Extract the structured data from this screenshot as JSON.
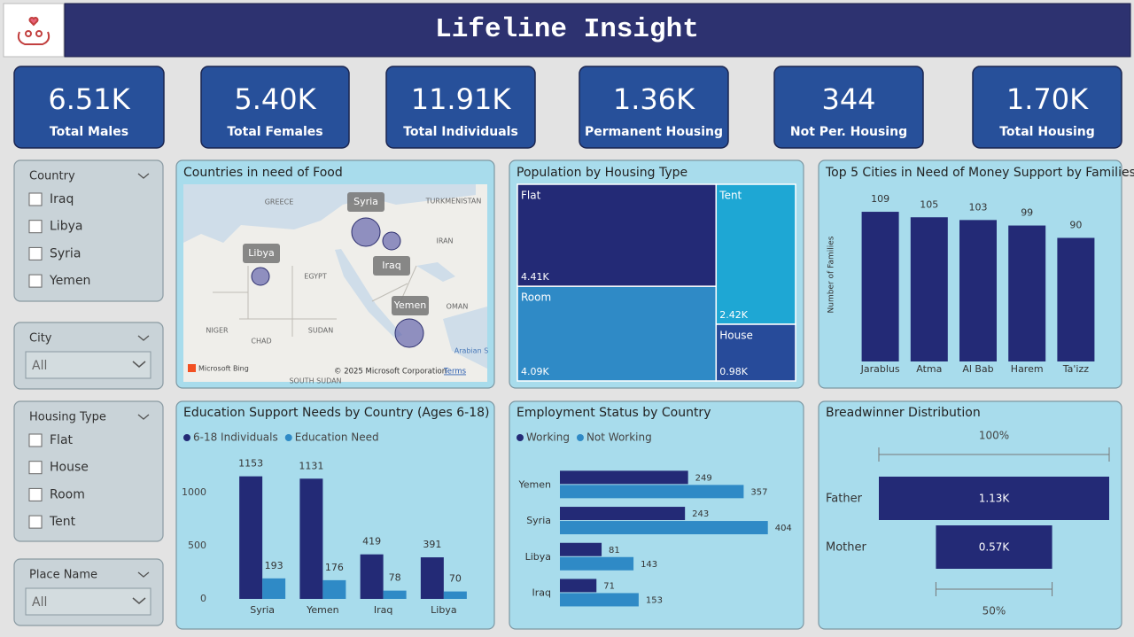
{
  "header": {
    "title": "Lifeline Insight"
  },
  "kpis": [
    {
      "value": "6.51K",
      "label": "Total Males"
    },
    {
      "value": "5.40K",
      "label": "Total Females"
    },
    {
      "value": "11.91K",
      "label": "Total Individuals"
    },
    {
      "value": "1.36K",
      "label": "Permanent Housing"
    },
    {
      "value": "344",
      "label": "Not Per. Housing"
    },
    {
      "value": "1.70K",
      "label": "Total Housing"
    }
  ],
  "slicers": [
    {
      "title": "Country",
      "options": [
        "Iraq",
        "Libya",
        "Syria",
        "Yemen"
      ]
    },
    {
      "title": "City",
      "selected": "All"
    },
    {
      "title": "Housing Type",
      "options": [
        "Flat",
        "House",
        "Room",
        "Tent"
      ]
    },
    {
      "title": "Place Name",
      "selected": "All"
    }
  ],
  "chart_data": [
    {
      "type": "map",
      "title": "Countries in need of Food",
      "locations": [
        "Syria",
        "Libya",
        "Iraq",
        "Yemen"
      ],
      "color": "#5a5ca8",
      "place_names": [
        "GREECE",
        "TURKMENISTAN",
        "IRAN",
        "EGYPT",
        "OMAN",
        "NIGER",
        "CHAD",
        "SUDAN",
        "SOUTH SUDAN",
        "Arabian S"
      ],
      "attribution": "© 2025 Microsoft Corporation",
      "terms": "Terms",
      "provider": "Microsoft Bing"
    },
    {
      "type": "treemap",
      "title": "Population by Housing Type",
      "categories": [
        "Flat",
        "Tent",
        "Room",
        "House"
      ],
      "values": [
        4410,
        2420,
        4090,
        980
      ],
      "value_labels": [
        "4.41K",
        "2.42K",
        "4.09K",
        "0.98K"
      ],
      "colors": [
        "#232a76",
        "#1ea7d4",
        "#2f8ac6",
        "#274b9a"
      ]
    },
    {
      "type": "bar",
      "title": "Top 5 Cities in Need of Money Support by Families",
      "y_label": "Number of Families",
      "categories": [
        "Jarablus",
        "Atma",
        "Al Bab",
        "Harem",
        "Ta'izz"
      ],
      "values": [
        109,
        105,
        103,
        99,
        90
      ],
      "color": "#232a76",
      "ylim": [
        0,
        120
      ]
    },
    {
      "type": "grouped_bar",
      "title": "Education Support Needs by Country (Ages 6-18)",
      "categories": [
        "Syria",
        "Yemen",
        "Iraq",
        "Libya"
      ],
      "series": [
        {
          "name": "6-18 Individuals",
          "color": "#232a76",
          "values": [
            1153,
            1131,
            419,
            391
          ]
        },
        {
          "name": "Education Need",
          "color": "#2f8ac6",
          "values": [
            193,
            176,
            78,
            70
          ]
        }
      ],
      "ylim": [
        0,
        1200
      ],
      "yticks": [
        0,
        500,
        1000
      ]
    },
    {
      "type": "grouped_hbar",
      "title": "Employment Status by Country",
      "categories": [
        "Yemen",
        "Syria",
        "Libya",
        "Iraq"
      ],
      "series": [
        {
          "name": "Working",
          "color": "#232a76",
          "values": [
            249,
            243,
            81,
            71
          ]
        },
        {
          "name": "Not Working",
          "color": "#2f8ac6",
          "values": [
            357,
            404,
            143,
            153
          ]
        }
      ],
      "xlim": [
        0,
        420
      ]
    },
    {
      "type": "funnel",
      "title": "Breadwinner Distribution",
      "categories": [
        "Father",
        "Mother"
      ],
      "values": [
        1130,
        570
      ],
      "value_labels": [
        "1.13K",
        "0.57K"
      ],
      "color": "#232a76",
      "top_label": "100%",
      "bottom_label": "50%"
    }
  ]
}
